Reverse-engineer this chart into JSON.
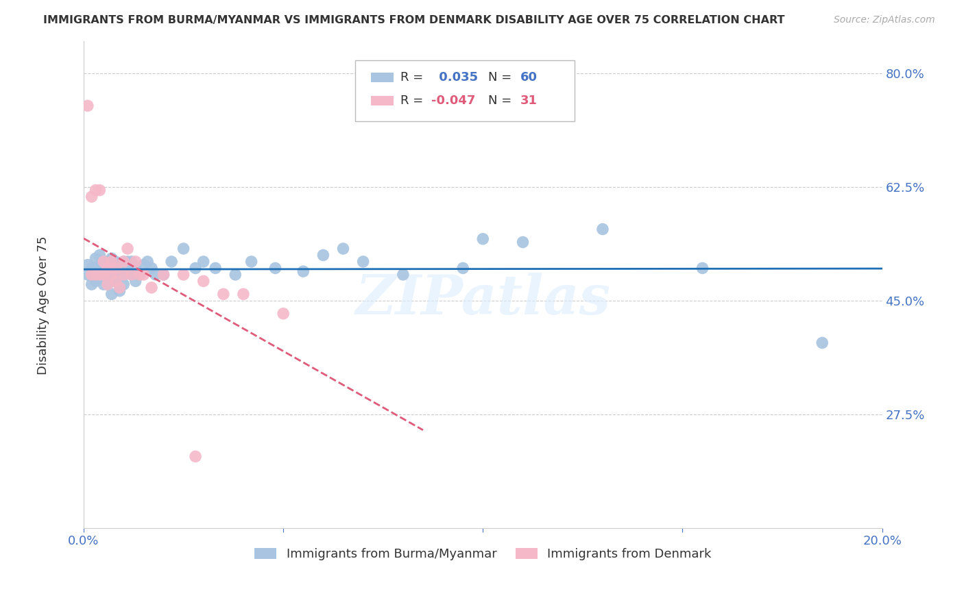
{
  "title": "IMMIGRANTS FROM BURMA/MYANMAR VS IMMIGRANTS FROM DENMARK DISABILITY AGE OVER 75 CORRELATION CHART",
  "source": "Source: ZipAtlas.com",
  "ylabel": "Disability Age Over 75",
  "xlim": [
    0.0,
    0.2
  ],
  "ylim": [
    0.1,
    0.85
  ],
  "yticks": [
    0.275,
    0.45,
    0.625,
    0.8
  ],
  "xticks": [
    0.0,
    0.05,
    0.1,
    0.15,
    0.2
  ],
  "grid_color": "#cccccc",
  "background_color": "#ffffff",
  "watermark": "ZIPatlas",
  "series": [
    {
      "name": "Immigrants from Burma/Myanmar",
      "color": "#a8c4e0",
      "line_color": "#1f6fb5",
      "R": 0.035,
      "N": 60,
      "x": [
        0.001,
        0.001,
        0.002,
        0.002,
        0.003,
        0.003,
        0.003,
        0.004,
        0.004,
        0.004,
        0.005,
        0.005,
        0.005,
        0.006,
        0.006,
        0.006,
        0.007,
        0.007,
        0.007,
        0.007,
        0.008,
        0.008,
        0.008,
        0.009,
        0.009,
        0.009,
        0.01,
        0.01,
        0.01,
        0.011,
        0.011,
        0.012,
        0.012,
        0.013,
        0.013,
        0.014,
        0.015,
        0.016,
        0.017,
        0.018,
        0.02,
        0.022,
        0.025,
        0.028,
        0.03,
        0.033,
        0.038,
        0.042,
        0.048,
        0.055,
        0.06,
        0.065,
        0.07,
        0.08,
        0.095,
        0.1,
        0.11,
        0.13,
        0.155,
        0.185
      ],
      "y": [
        0.49,
        0.505,
        0.475,
        0.5,
        0.48,
        0.5,
        0.515,
        0.485,
        0.505,
        0.52,
        0.475,
        0.495,
        0.51,
        0.475,
        0.495,
        0.51,
        0.46,
        0.48,
        0.495,
        0.515,
        0.48,
        0.495,
        0.51,
        0.465,
        0.49,
        0.505,
        0.475,
        0.49,
        0.51,
        0.495,
        0.51,
        0.49,
        0.51,
        0.48,
        0.5,
        0.49,
        0.505,
        0.51,
        0.5,
        0.49,
        0.49,
        0.51,
        0.53,
        0.5,
        0.51,
        0.5,
        0.49,
        0.51,
        0.5,
        0.495,
        0.52,
        0.53,
        0.51,
        0.49,
        0.5,
        0.545,
        0.54,
        0.56,
        0.5,
        0.385
      ]
    },
    {
      "name": "Immigrants from Denmark",
      "color": "#f4b8c8",
      "line_color": "#e05a7a",
      "R": -0.047,
      "N": 31,
      "x": [
        0.001,
        0.002,
        0.002,
        0.003,
        0.003,
        0.004,
        0.004,
        0.005,
        0.005,
        0.006,
        0.006,
        0.007,
        0.007,
        0.008,
        0.008,
        0.009,
        0.01,
        0.01,
        0.011,
        0.012,
        0.013,
        0.014,
        0.015,
        0.017,
        0.02,
        0.025,
        0.03,
        0.035,
        0.04,
        0.05,
        0.028
      ],
      "y": [
        0.75,
        0.49,
        0.61,
        0.49,
        0.62,
        0.49,
        0.62,
        0.49,
        0.51,
        0.475,
        0.5,
        0.49,
        0.51,
        0.48,
        0.5,
        0.47,
        0.49,
        0.51,
        0.53,
        0.49,
        0.51,
        0.49,
        0.49,
        0.47,
        0.49,
        0.49,
        0.48,
        0.46,
        0.46,
        0.43,
        0.21
      ]
    }
  ],
  "title_color": "#333333",
  "tick_color": "#4472c4"
}
